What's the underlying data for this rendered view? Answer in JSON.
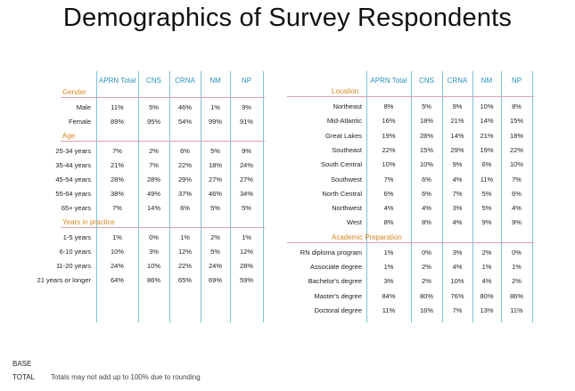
{
  "title": "Demographics of Survey Respondents",
  "columns": [
    "APRN Total",
    "CNS",
    "CRNA",
    "NM",
    "NP"
  ],
  "left_table": [
    {
      "section": "Gender",
      "rows": [
        {
          "label": "Male",
          "values": [
            "11%",
            "5%",
            "46%",
            "1%",
            "9%"
          ]
        },
        {
          "label": "Female",
          "values": [
            "89%",
            "95%",
            "54%",
            "99%",
            "91%"
          ]
        }
      ]
    },
    {
      "section": "Age",
      "rows": [
        {
          "label": "25-34 years",
          "values": [
            "7%",
            "2%",
            "6%",
            "5%",
            "9%"
          ]
        },
        {
          "label": "35-44 years",
          "values": [
            "21%",
            "7%",
            "22%",
            "18%",
            "24%"
          ]
        },
        {
          "label": "45-54 years",
          "values": [
            "28%",
            "28%",
            "29%",
            "27%",
            "27%"
          ]
        },
        {
          "label": "55-64 years",
          "values": [
            "38%",
            "49%",
            "37%",
            "46%",
            "34%"
          ]
        },
        {
          "label": "65+ years",
          "values": [
            "7%",
            "14%",
            "6%",
            "5%",
            "5%"
          ]
        }
      ]
    },
    {
      "section": "Years in practice",
      "rows": [
        {
          "label": "1-5 years",
          "values": [
            "1%",
            "0%",
            "1%",
            "2%",
            "1%"
          ]
        },
        {
          "label": "6-10 years",
          "values": [
            "10%",
            "3%",
            "12%",
            "5%",
            "12%"
          ]
        },
        {
          "label": "11-20 years",
          "values": [
            "24%",
            "10%",
            "22%",
            "24%",
            "28%"
          ]
        },
        {
          "label": "21 years or longer",
          "values": [
            "64%",
            "86%",
            "65%",
            "69%",
            "59%"
          ]
        }
      ]
    }
  ],
  "right_table": [
    {
      "section": "Location",
      "rows": [
        {
          "label": "Northeast",
          "values": [
            "8%",
            "5%",
            "9%",
            "10%",
            "8%"
          ]
        },
        {
          "label": "Mid-Atlantic",
          "values": [
            "16%",
            "18%",
            "21%",
            "14%",
            "15%"
          ]
        },
        {
          "label": "Great Lakes",
          "values": [
            "19%",
            "28%",
            "14%",
            "21%",
            "18%"
          ]
        },
        {
          "label": "Southeast",
          "values": [
            "22%",
            "15%",
            "29%",
            "19%",
            "22%"
          ]
        },
        {
          "label": "South Central",
          "values": [
            "10%",
            "10%",
            "9%",
            "6%",
            "10%"
          ]
        },
        {
          "label": "Southwest",
          "values": [
            "7%",
            "6%",
            "4%",
            "11%",
            "7%"
          ]
        },
        {
          "label": "North Central",
          "values": [
            "6%",
            "6%",
            "7%",
            "5%",
            "6%"
          ]
        },
        {
          "label": "Northwest",
          "values": [
            "4%",
            "4%",
            "3%",
            "5%",
            "4%"
          ]
        },
        {
          "label": "West",
          "values": [
            "8%",
            "8%",
            "4%",
            "9%",
            "9%"
          ]
        }
      ]
    },
    {
      "section": "Academic Preparation",
      "rows": [
        {
          "label": "RN diploma program",
          "values": [
            "1%",
            "0%",
            "3%",
            "2%",
            "0%"
          ]
        },
        {
          "label": "Associate degree",
          "values": [
            "1%",
            "2%",
            "4%",
            "1%",
            "1%"
          ]
        },
        {
          "label": "Bachelor's degree",
          "values": [
            "3%",
            "2%",
            "10%",
            "4%",
            "2%"
          ]
        },
        {
          "label": "Master's degree",
          "values": [
            "84%",
            "80%",
            "76%",
            "80%",
            "86%"
          ]
        },
        {
          "label": "Doctoral degree",
          "values": [
            "11%",
            "16%",
            "7%",
            "13%",
            "11%"
          ]
        }
      ]
    }
  ],
  "footer": {
    "base_label": "BASE",
    "total_label": "TOTAL",
    "note": "Totals may not add up to 100% due to rounding"
  }
}
